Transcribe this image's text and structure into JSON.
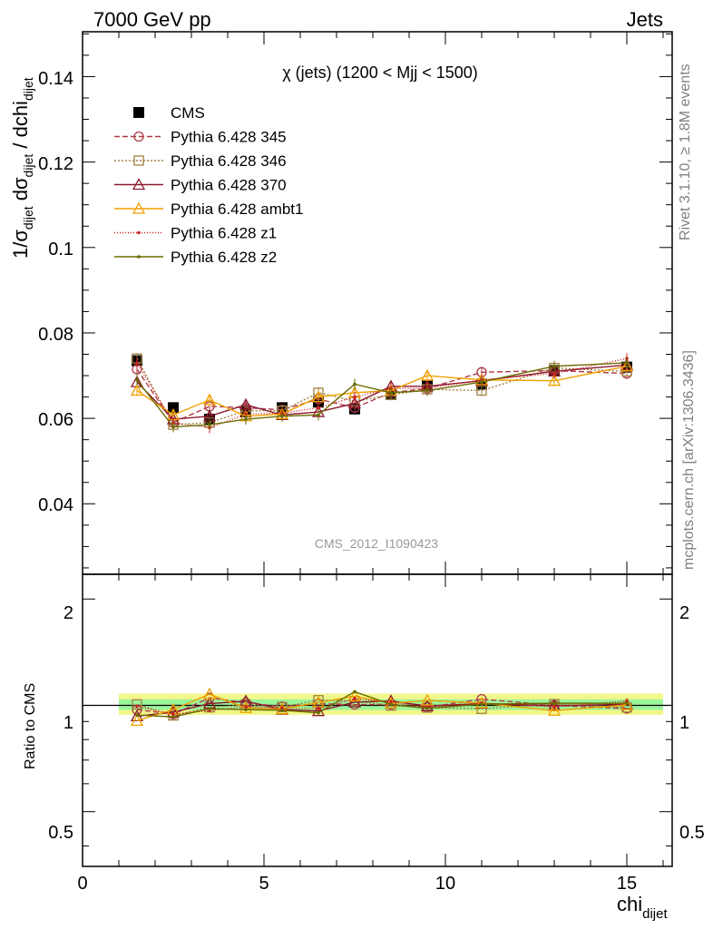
{
  "header": {
    "left": "7000 GeV pp",
    "right": "Jets"
  },
  "side": {
    "rivet": "Rivet 3.1.10, ≥ 1.8M events",
    "mcplots": "mcplots.cern.ch [arXiv:1306.3436]"
  },
  "main_plot": {
    "title": "χ (jets) (1200 < Mjj < 1500)",
    "ylabel_parts": {
      "a": "1/σ",
      "a_sub": "dijet",
      "b": " dσ",
      "b_sub": "dijet",
      "c": " / dchi",
      "c_sub": "dijet"
    },
    "watermark": "CMS_2012_I1090423",
    "y_ticks": [
      "0.04",
      "0.06",
      "0.08",
      "0.1",
      "0.12",
      "0.14"
    ],
    "x_tick_labels": [
      "0",
      "5",
      "10",
      "15"
    ]
  },
  "ratio_plot": {
    "ylabel": "Ratio to CMS",
    "y_ticks": [
      "0.5",
      "1",
      "2"
    ]
  },
  "xlabel": {
    "main": "chi",
    "sub": "dijet"
  },
  "chart_data": {
    "type": "line",
    "xlim": [
      0,
      16.25
    ],
    "ylim": [
      0.0235,
      0.1505
    ],
    "ratio_ylim": [
      0.35,
      2.35
    ],
    "x": [
      1.5,
      2.5,
      3.5,
      4.5,
      5.5,
      6.5,
      7.5,
      8.5,
      9.5,
      11,
      13,
      15
    ],
    "series": [
      {
        "name": "CMS",
        "color": "#000000",
        "marker": "filled-square",
        "dash": "none",
        "values": [
          0.0735,
          0.0625,
          0.0598,
          0.0615,
          0.0625,
          0.0638,
          0.0622,
          0.0656,
          0.0678,
          0.068,
          0.0712,
          0.072
        ]
      },
      {
        "name": "Pythia 6.428 345",
        "color": "#b03a48",
        "marker": "open-circle",
        "dash": "6,3",
        "values": [
          0.0715,
          0.059,
          0.0628,
          0.0625,
          0.062,
          0.0645,
          0.0625,
          0.066,
          0.067,
          0.0708,
          0.0712,
          0.0705
        ]
      },
      {
        "name": "Pythia 6.428 346",
        "color": "#a08040",
        "marker": "open-square",
        "dash": "2,2",
        "values": [
          0.074,
          0.0585,
          0.059,
          0.0618,
          0.0618,
          0.066,
          0.064,
          0.0655,
          0.0668,
          0.0665,
          0.0718,
          0.071
        ]
      },
      {
        "name": "Pythia 6.428 370",
        "color": "#8b1a2e",
        "marker": "open-triangle",
        "dash": "none",
        "values": [
          0.0685,
          0.0598,
          0.0605,
          0.0632,
          0.0608,
          0.0615,
          0.0635,
          0.0675,
          0.0675,
          0.0688,
          0.071,
          0.0725
        ]
      },
      {
        "name": "Pythia 6.428 ambt1",
        "color": "#f0a000",
        "marker": "open-triangle",
        "dash": "none",
        "values": [
          0.0665,
          0.0608,
          0.0643,
          0.0605,
          0.061,
          0.065,
          0.066,
          0.0665,
          0.07,
          0.069,
          0.0688,
          0.0722
        ]
      },
      {
        "name": "Pythia 6.428 z1",
        "color": "#cc2020",
        "marker": "dot",
        "dash": "1,2",
        "values": [
          0.073,
          0.059,
          0.0578,
          0.061,
          0.0612,
          0.0625,
          0.065,
          0.067,
          0.067,
          0.069,
          0.0705,
          0.074
        ]
      },
      {
        "name": "Pythia 6.428 z2",
        "color": "#6b6b00",
        "marker": "dot",
        "dash": "none",
        "values": [
          0.069,
          0.058,
          0.0585,
          0.0598,
          0.0605,
          0.0608,
          0.068,
          0.066,
          0.0665,
          0.0685,
          0.0722,
          0.073
        ]
      }
    ]
  }
}
